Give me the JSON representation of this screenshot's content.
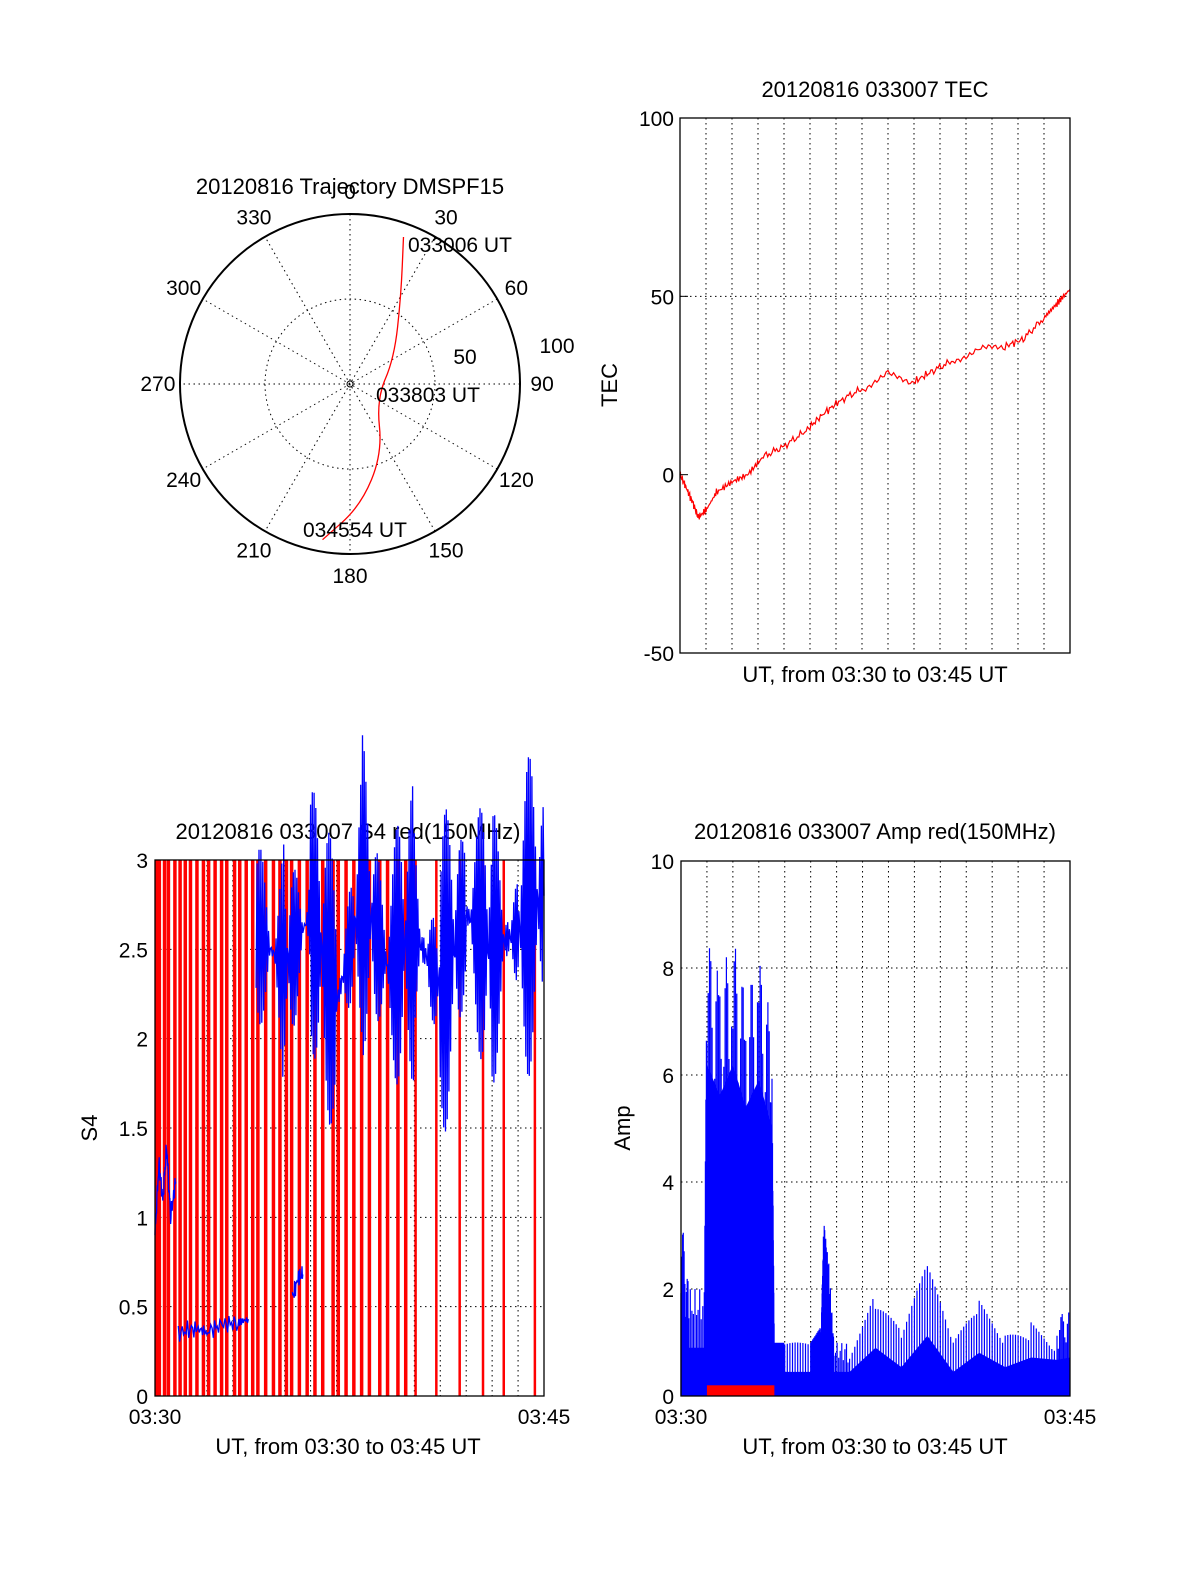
{
  "chart_data": [
    {
      "type": "polar",
      "title": "20120816 Trajectory DMSPF15",
      "angle_ticks": [
        "0",
        "30",
        "60",
        "90",
        "120",
        "150",
        "180",
        "210",
        "240",
        "270",
        "300",
        "330"
      ],
      "radial_labels": [
        "50",
        "100"
      ],
      "rlim": [
        0,
        100
      ],
      "grid": true,
      "series": [
        {
          "color": "#ff0000",
          "points": [
            {
              "az": 20,
              "r": 92
            },
            {
              "az": 30,
              "r": 60
            },
            {
              "az": 60,
              "r": 30
            },
            {
              "az": 120,
              "r": 18
            },
            {
              "az": 155,
              "r": 45
            },
            {
              "az": 175,
              "r": 72
            },
            {
              "az": 190,
              "r": 93
            }
          ]
        }
      ],
      "annotations": [
        {
          "text": "033006 UT",
          "az": 20,
          "r": 92
        },
        {
          "text": "033803 UT",
          "az": 90,
          "r": 20
        },
        {
          "text": "034554 UT",
          "az": 190,
          "r": 93
        }
      ]
    },
    {
      "type": "line",
      "title": "20120816 033007 TEC",
      "xlabel": "UT, from 03:30 to 03:45 UT",
      "ylabel": "TEC",
      "xlim": [
        0,
        15
      ],
      "ylim": [
        -50,
        100
      ],
      "yticks": [
        "-50",
        "0",
        "50",
        "100"
      ],
      "grid": true,
      "series": [
        {
          "color": "#ff0000",
          "x": [
            0,
            0.2,
            0.5,
            0.7,
            1.0,
            1.4,
            2.0,
            2.6,
            3.2,
            4.0,
            4.8,
            5.5,
            6.2,
            7.0,
            8.0,
            9.0,
            9.7,
            10.5,
            11.5,
            12.5,
            13.2,
            14.0,
            14.5,
            15.0
          ],
          "y": [
            0,
            -3,
            -8,
            -12,
            -10,
            -5,
            -2,
            0,
            5,
            8,
            12,
            17,
            21,
            24,
            28,
            26,
            29,
            32,
            35,
            36,
            38,
            44,
            48,
            52
          ]
        }
      ]
    },
    {
      "type": "line",
      "title": "20120816 033007 S4 red(150MHz)",
      "xlabel": "UT, from 03:30 to 03:45 UT",
      "ylabel": "S4",
      "xticks": [
        "03:30",
        "03:45"
      ],
      "yticks": [
        "0",
        "0.5",
        "1",
        "1.5",
        "2",
        "2.5",
        "3"
      ],
      "xlim": [
        0,
        15
      ],
      "ylim": [
        0,
        3
      ],
      "grid": true,
      "series": [
        {
          "color": "#0000ff",
          "segments": [
            {
              "x": [
                0,
                0.15,
                0.3,
                0.45,
                0.6,
                0.8
              ],
              "y": [
                0.9,
                1.3,
                1.1,
                1.4,
                1.0,
                1.2
              ]
            },
            {
              "x": [
                0.9,
                1.5,
                2.0,
                2.6,
                3.2,
                3.6
              ],
              "y": [
                0.35,
                0.38,
                0.36,
                0.4,
                0.41,
                0.43
              ]
            },
            {
              "x": [
                5.3,
                5.5,
                5.7
              ],
              "y": [
                0.55,
                0.65,
                0.68
              ]
            },
            {
              "x": [
                3.9,
                5.0,
                6.0,
                7.0,
                8.0,
                9.0,
                10.0,
                11.0,
                12.0,
                13.0,
                14.0,
                15.0
              ],
              "y": [
                2.6,
                2.4,
                2.7,
                2.2,
                2.8,
                2.4,
                2.6,
                2.3,
                2.7,
                2.5,
                2.6,
                2.8
              ]
            }
          ]
        },
        {
          "color": "#ff0000",
          "spike_x": [
            0,
            0.1,
            0.3,
            0.45,
            0.7,
            0.9,
            1.1,
            1.3,
            1.55,
            1.8,
            2.0,
            2.25,
            2.5,
            2.7,
            3.0,
            3.2,
            3.45,
            3.7,
            3.9,
            4.2,
            4.5,
            4.75,
            5.0,
            5.2,
            5.5,
            5.8,
            6.1,
            6.4,
            6.8,
            7.0,
            7.3,
            7.6,
            7.9,
            8.2,
            8.6,
            8.9,
            9.3,
            9.6,
            10.0,
            10.8,
            11.7,
            12.6,
            13.4,
            14.6
          ]
        }
      ]
    },
    {
      "type": "line",
      "title": "20120816 033007 Amp red(150MHz)",
      "xlabel": "UT, from 03:30 to 03:45 UT",
      "ylabel": "Amp",
      "xticks": [
        "03:30",
        "03:45"
      ],
      "yticks": [
        "0",
        "2",
        "4",
        "6",
        "8",
        "10"
      ],
      "xlim": [
        0,
        15
      ],
      "ylim": [
        0,
        10
      ],
      "grid": true,
      "series": [
        {
          "color": "#0000ff",
          "x": [
            0,
            0.3,
            0.9,
            1.0,
            1.5,
            2.0,
            2.5,
            3.0,
            3.5,
            3.6,
            4.0,
            5.0,
            5.4,
            5.5,
            5.7,
            5.9,
            6.5,
            7.5,
            8.5,
            9.5,
            10.5,
            11.5,
            12.5,
            13.5,
            14.5,
            15.0
          ],
          "y": [
            3.5,
            2.0,
            2.0,
            8.6,
            7.8,
            8.6,
            7.5,
            8.2,
            7.0,
            1.0,
            1.0,
            1.0,
            1.3,
            3.5,
            2.5,
            1.0,
            1.0,
            2.0,
            1.2,
            2.5,
            1.0,
            1.8,
            1.2,
            1.6,
            1.5,
            1.6
          ]
        },
        {
          "color": "#ff0000",
          "x": [
            1.0,
            3.6
          ],
          "y": [
            0.2,
            0.2
          ]
        }
      ]
    }
  ]
}
